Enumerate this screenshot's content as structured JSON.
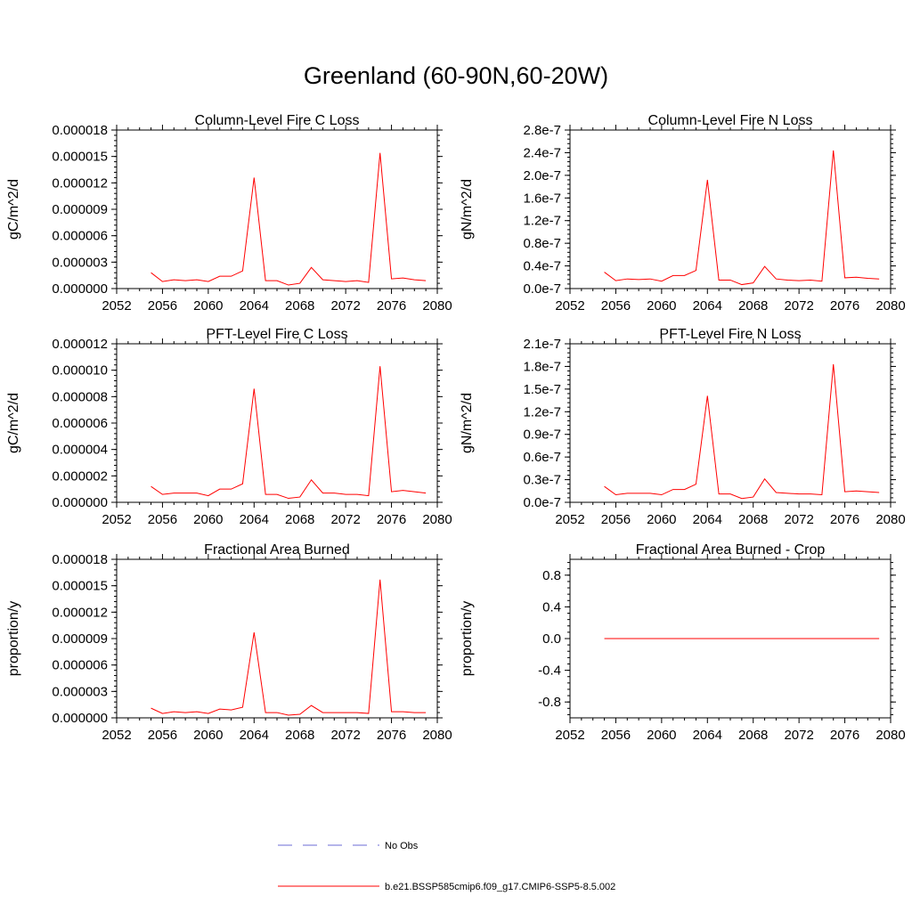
{
  "figure": {
    "title": "Greenland (60-90N,60-20W)"
  },
  "colors": {
    "model": "#ff0000",
    "obs": "#6b6bd6",
    "axis": "#000000"
  },
  "legend": {
    "items": [
      {
        "label": "No Obs",
        "style": "dashed",
        "color": "#6b6bd6"
      },
      {
        "label": "b.e21.BSSP585cmip6.f09_g17.CMIP6-SSP5-8.5.002",
        "style": "solid",
        "color": "#ff0000"
      }
    ]
  },
  "chart_data": [
    {
      "type": "line",
      "title": "Column-Level Fire C Loss",
      "ylabel": "gC/m^2/d",
      "xlim": [
        2052,
        2080
      ],
      "ylim": [
        0,
        1.8e-05
      ],
      "xticks": [
        2052,
        2056,
        2060,
        2064,
        2068,
        2072,
        2076,
        2080
      ],
      "xtick_labels": [
        "2052",
        "2056",
        "2060",
        "2064",
        "2068",
        "2072",
        "2076",
        "2080"
      ],
      "yticks": [
        0,
        3e-06,
        6e-06,
        9e-06,
        1.2e-05,
        1.5e-05,
        1.8e-05
      ],
      "ytick_labels": [
        "0.000000",
        "0.000003",
        "0.000006",
        "0.000009",
        "0.000012",
        "0.000015",
        "0.000018"
      ],
      "x": [
        2055,
        2056,
        2057,
        2058,
        2059,
        2060,
        2061,
        2062,
        2063,
        2064,
        2065,
        2066,
        2067,
        2068,
        2069,
        2070,
        2071,
        2072,
        2073,
        2074,
        2075,
        2076,
        2077,
        2078,
        2079
      ],
      "series": [
        {
          "name": "b.e21.BSSP585cmip6.f09_g17.CMIP6-SSP5-8.5.002",
          "values": [
            1.8e-06,
            8e-07,
            1e-06,
            9e-07,
            1e-06,
            8e-07,
            1.4e-06,
            1.4e-06,
            2e-06,
            1.26e-05,
            9e-07,
            9e-07,
            4e-07,
            6e-07,
            2.4e-06,
            1e-06,
            9e-07,
            8e-07,
            9e-07,
            7e-07,
            1.54e-05,
            1.1e-06,
            1.2e-06,
            1e-06,
            9e-07
          ]
        }
      ]
    },
    {
      "type": "line",
      "title": "Column-Level Fire N Loss",
      "ylabel": "gN/m^2/d",
      "xlim": [
        2052,
        2080
      ],
      "ylim": [
        0,
        2.8e-07
      ],
      "xticks": [
        2052,
        2056,
        2060,
        2064,
        2068,
        2072,
        2076,
        2080
      ],
      "xtick_labels": [
        "2052",
        "2056",
        "2060",
        "2064",
        "2068",
        "2072",
        "2076",
        "2080"
      ],
      "yticks": [
        0,
        4e-08,
        8e-08,
        1.2e-07,
        1.6e-07,
        2e-07,
        2.4e-07,
        2.8e-07
      ],
      "ytick_labels": [
        "0.0e-7",
        "0.4e-7",
        "0.8e-7",
        "1.2e-7",
        "1.6e-7",
        "2.0e-7",
        "2.4e-7",
        "2.8e-7"
      ],
      "x": [
        2055,
        2056,
        2057,
        2058,
        2059,
        2060,
        2061,
        2062,
        2063,
        2064,
        2065,
        2066,
        2067,
        2068,
        2069,
        2070,
        2071,
        2072,
        2073,
        2074,
        2075,
        2076,
        2077,
        2078,
        2079
      ],
      "series": [
        {
          "name": "b.e21.BSSP585cmip6.f09_g17.CMIP6-SSP5-8.5.002",
          "values": [
            2.9e-08,
            1.4e-08,
            1.7e-08,
            1.6e-08,
            1.7e-08,
            1.3e-08,
            2.3e-08,
            2.3e-08,
            3.2e-08,
            1.92e-07,
            1.5e-08,
            1.5e-08,
            7e-09,
            1e-08,
            3.9e-08,
            1.7e-08,
            1.5e-08,
            1.4e-08,
            1.5e-08,
            1.3e-08,
            2.44e-07,
            1.9e-08,
            2e-08,
            1.8e-08,
            1.7e-08
          ]
        }
      ]
    },
    {
      "type": "line",
      "title": "PFT-Level Fire C Loss",
      "ylabel": "gC/m^2/d",
      "xlim": [
        2052,
        2080
      ],
      "ylim": [
        0,
        1.2e-05
      ],
      "xticks": [
        2052,
        2056,
        2060,
        2064,
        2068,
        2072,
        2076,
        2080
      ],
      "xtick_labels": [
        "2052",
        "2056",
        "2060",
        "2064",
        "2068",
        "2072",
        "2076",
        "2080"
      ],
      "yticks": [
        0,
        2e-06,
        4e-06,
        6e-06,
        8e-06,
        1e-05,
        1.2e-05
      ],
      "ytick_labels": [
        "0.000000",
        "0.000002",
        "0.000004",
        "0.000006",
        "0.000008",
        "0.000010",
        "0.000012"
      ],
      "x": [
        2055,
        2056,
        2057,
        2058,
        2059,
        2060,
        2061,
        2062,
        2063,
        2064,
        2065,
        2066,
        2067,
        2068,
        2069,
        2070,
        2071,
        2072,
        2073,
        2074,
        2075,
        2076,
        2077,
        2078,
        2079
      ],
      "series": [
        {
          "name": "b.e21.BSSP585cmip6.f09_g17.CMIP6-SSP5-8.5.002",
          "values": [
            1.2e-06,
            6e-07,
            7e-07,
            7e-07,
            7e-07,
            5e-07,
            1e-06,
            1e-06,
            1.4e-06,
            8.6e-06,
            6e-07,
            6e-07,
            3e-07,
            4e-07,
            1.7e-06,
            7e-07,
            7e-07,
            6e-07,
            6e-07,
            5e-07,
            1.03e-05,
            8e-07,
            9e-07,
            8e-07,
            7e-07
          ]
        }
      ]
    },
    {
      "type": "line",
      "title": "PFT-Level Fire N Loss",
      "ylabel": "gN/m^2/d",
      "xlim": [
        2052,
        2080
      ],
      "ylim": [
        0,
        2.1e-07
      ],
      "xticks": [
        2052,
        2056,
        2060,
        2064,
        2068,
        2072,
        2076,
        2080
      ],
      "xtick_labels": [
        "2052",
        "2056",
        "2060",
        "2064",
        "2068",
        "2072",
        "2076",
        "2080"
      ],
      "yticks": [
        0,
        3e-08,
        6e-08,
        9e-08,
        1.2e-07,
        1.5e-07,
        1.8e-07,
        2.1e-07
      ],
      "ytick_labels": [
        "0.0e-7",
        "0.3e-7",
        "0.6e-7",
        "0.9e-7",
        "1.2e-7",
        "1.5e-7",
        "1.8e-7",
        "2.1e-7"
      ],
      "x": [
        2055,
        2056,
        2057,
        2058,
        2059,
        2060,
        2061,
        2062,
        2063,
        2064,
        2065,
        2066,
        2067,
        2068,
        2069,
        2070,
        2071,
        2072,
        2073,
        2074,
        2075,
        2076,
        2077,
        2078,
        2079
      ],
      "series": [
        {
          "name": "b.e21.BSSP585cmip6.f09_g17.CMIP6-SSP5-8.5.002",
          "values": [
            2.1e-08,
            1e-08,
            1.2e-08,
            1.2e-08,
            1.2e-08,
            1e-08,
            1.7e-08,
            1.7e-08,
            2.4e-08,
            1.41e-07,
            1.1e-08,
            1.1e-08,
            5e-09,
            7e-09,
            3.1e-08,
            1.3e-08,
            1.2e-08,
            1.1e-08,
            1.1e-08,
            1e-08,
            1.83e-07,
            1.4e-08,
            1.5e-08,
            1.4e-08,
            1.3e-08
          ]
        }
      ]
    },
    {
      "type": "line",
      "title": "Fractional Area Burned",
      "ylabel": "proportion/y",
      "xlim": [
        2052,
        2080
      ],
      "ylim": [
        0,
        1.8e-05
      ],
      "xticks": [
        2052,
        2056,
        2060,
        2064,
        2068,
        2072,
        2076,
        2080
      ],
      "xtick_labels": [
        "2052",
        "2056",
        "2060",
        "2064",
        "2068",
        "2072",
        "2076",
        "2080"
      ],
      "yticks": [
        0,
        3e-06,
        6e-06,
        9e-06,
        1.2e-05,
        1.5e-05,
        1.8e-05
      ],
      "ytick_labels": [
        "0.000000",
        "0.000003",
        "0.000006",
        "0.000009",
        "0.000012",
        "0.000015",
        "0.000018"
      ],
      "x": [
        2055,
        2056,
        2057,
        2058,
        2059,
        2060,
        2061,
        2062,
        2063,
        2064,
        2065,
        2066,
        2067,
        2068,
        2069,
        2070,
        2071,
        2072,
        2073,
        2074,
        2075,
        2076,
        2077,
        2078,
        2079
      ],
      "series": [
        {
          "name": "b.e21.BSSP585cmip6.f09_g17.CMIP6-SSP5-8.5.002",
          "values": [
            1.1e-06,
            5e-07,
            7e-07,
            6e-07,
            7e-07,
            5e-07,
            1e-06,
            9e-07,
            1.2e-06,
            9.7e-06,
            6e-07,
            6e-07,
            3e-07,
            4e-07,
            1.4e-06,
            6e-07,
            6e-07,
            6e-07,
            6e-07,
            5e-07,
            1.57e-05,
            7e-07,
            7e-07,
            6e-07,
            6e-07
          ]
        }
      ]
    },
    {
      "type": "line",
      "title": "Fractional Area Burned - Crop",
      "ylabel": "proportion/y",
      "xlim": [
        2052,
        2080
      ],
      "ylim": [
        -1,
        1
      ],
      "xticks": [
        2052,
        2056,
        2060,
        2064,
        2068,
        2072,
        2076,
        2080
      ],
      "xtick_labels": [
        "2052",
        "2056",
        "2060",
        "2064",
        "2068",
        "2072",
        "2076",
        "2080"
      ],
      "yticks": [
        -0.8,
        -0.4,
        0,
        0.4,
        0.8
      ],
      "ytick_labels": [
        "-0.8",
        "-0.4",
        "0.0",
        "0.4",
        "0.8"
      ],
      "x": [
        2055,
        2056,
        2057,
        2058,
        2059,
        2060,
        2061,
        2062,
        2063,
        2064,
        2065,
        2066,
        2067,
        2068,
        2069,
        2070,
        2071,
        2072,
        2073,
        2074,
        2075,
        2076,
        2077,
        2078,
        2079
      ],
      "series": [
        {
          "name": "b.e21.BSSP585cmip6.f09_g17.CMIP6-SSP5-8.5.002",
          "values": [
            0,
            0,
            0,
            0,
            0,
            0,
            0,
            0,
            0,
            0,
            0,
            0,
            0,
            0,
            0,
            0,
            0,
            0,
            0,
            0,
            0,
            0,
            0,
            0,
            0
          ]
        }
      ]
    }
  ]
}
